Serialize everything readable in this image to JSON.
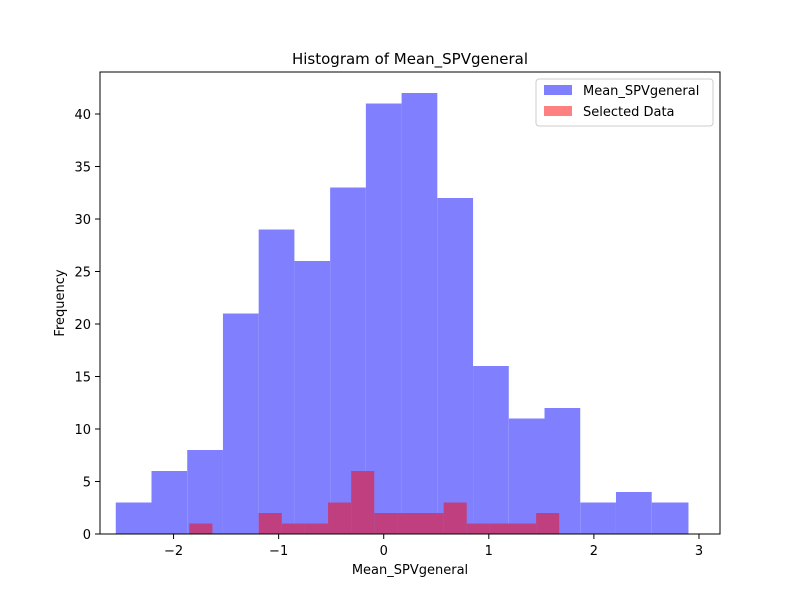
{
  "chart_data": {
    "type": "bar",
    "title": "Histogram of Mean_SPVgeneral",
    "xlabel": "Mean_SPVgeneral",
    "ylabel": "Frequency",
    "xlim": [
      -2.7,
      3.2
    ],
    "ylim": [
      0,
      44
    ],
    "xticks": [
      -2,
      -1,
      0,
      1,
      2,
      3
    ],
    "xtick_labels": [
      "−2",
      "−1",
      "0",
      "1",
      "2",
      "3"
    ],
    "yticks": [
      0,
      5,
      10,
      15,
      20,
      25,
      30,
      35,
      40
    ],
    "yticks_labels": [
      "0",
      "5",
      "10",
      "15",
      "20",
      "25",
      "30",
      "35",
      "40"
    ],
    "grid": false,
    "legend_position": "top-right",
    "series": [
      {
        "name": "Mean_SPVgeneral",
        "color": "#8080ff",
        "bins": [
          {
            "x0": -2.55,
            "x1": -2.21,
            "count": 3
          },
          {
            "x0": -2.21,
            "x1": -1.87,
            "count": 6
          },
          {
            "x0": -1.87,
            "x1": -1.53,
            "count": 8
          },
          {
            "x0": -1.53,
            "x1": -1.19,
            "count": 21
          },
          {
            "x0": -1.19,
            "x1": -0.85,
            "count": 29
          },
          {
            "x0": -0.85,
            "x1": -0.51,
            "count": 26
          },
          {
            "x0": -0.51,
            "x1": -0.17,
            "count": 33
          },
          {
            "x0": -0.17,
            "x1": 0.17,
            "count": 41
          },
          {
            "x0": 0.17,
            "x1": 0.51,
            "count": 42
          },
          {
            "x0": 0.51,
            "x1": 0.85,
            "count": 32
          },
          {
            "x0": 0.85,
            "x1": 1.19,
            "count": 16
          },
          {
            "x0": 1.19,
            "x1": 1.53,
            "count": 11
          },
          {
            "x0": 1.53,
            "x1": 1.87,
            "count": 12
          },
          {
            "x0": 1.87,
            "x1": 2.21,
            "count": 3
          },
          {
            "x0": 2.21,
            "x1": 2.55,
            "count": 4
          },
          {
            "x0": 2.55,
            "x1": 2.9,
            "count": 3
          }
        ]
      },
      {
        "name": "Selected Data",
        "color": "#ff8080",
        "overlap_color": "#c0407f",
        "bins": [
          {
            "x0": -1.85,
            "x1": -1.63,
            "count": 1
          },
          {
            "x0": -1.63,
            "x1": -1.41,
            "count": 0
          },
          {
            "x0": -1.41,
            "x1": -1.19,
            "count": 0
          },
          {
            "x0": -1.19,
            "x1": -0.97,
            "count": 2
          },
          {
            "x0": -0.97,
            "x1": -0.75,
            "count": 1
          },
          {
            "x0": -0.75,
            "x1": -0.53,
            "count": 1
          },
          {
            "x0": -0.53,
            "x1": -0.31,
            "count": 3
          },
          {
            "x0": -0.31,
            "x1": -0.09,
            "count": 6
          },
          {
            "x0": -0.09,
            "x1": 0.13,
            "count": 2
          },
          {
            "x0": 0.13,
            "x1": 0.35,
            "count": 2
          },
          {
            "x0": 0.35,
            "x1": 0.57,
            "count": 2
          },
          {
            "x0": 0.57,
            "x1": 0.79,
            "count": 3
          },
          {
            "x0": 0.79,
            "x1": 1.01,
            "count": 1
          },
          {
            "x0": 1.01,
            "x1": 1.23,
            "count": 1
          },
          {
            "x0": 1.23,
            "x1": 1.45,
            "count": 1
          },
          {
            "x0": 1.45,
            "x1": 1.67,
            "count": 2
          }
        ]
      }
    ]
  }
}
